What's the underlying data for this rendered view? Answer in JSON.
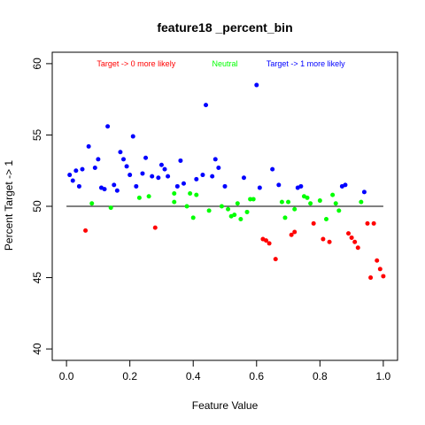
{
  "chart_data": {
    "type": "scatter",
    "title": "feature18 _percent_bin",
    "xlabel": "Feature Value",
    "ylabel": "Percent Target -> 1",
    "xlim": [
      -0.045,
      1.045
    ],
    "ylim": [
      39.2,
      60.8
    ],
    "xticks": [
      "0.0",
      "0.2",
      "0.4",
      "0.6",
      "0.8",
      "1.0"
    ],
    "xtick_values": [
      0,
      0.2,
      0.4,
      0.6,
      0.8,
      1.0
    ],
    "yticks": [
      "40",
      "45",
      "50",
      "55",
      "60"
    ],
    "ytick_values": [
      40,
      45,
      50,
      55,
      60
    ],
    "reference_line": 50,
    "grid": false,
    "legend_placement": "top",
    "colors": {
      "above": "#0000ff",
      "neutral": "#00ff00",
      "below": "#ff0000",
      "line": "#000000"
    },
    "annotations": [
      {
        "text": "Target -> 0 more likely",
        "color": "#ff0000",
        "x": 0.22,
        "y": 60
      },
      {
        "text": "Neutral",
        "color": "#00ff00",
        "x": 0.5,
        "y": 60
      },
      {
        "text": "Target -> 1 more likely",
        "color": "#0000ff",
        "x": 0.755,
        "y": 60
      }
    ],
    "series": [
      {
        "color_key": "above",
        "points": [
          [
            0.01,
            52.2
          ],
          [
            0.02,
            51.8
          ],
          [
            0.03,
            52.5
          ],
          [
            0.04,
            51.4
          ],
          [
            0.05,
            52.6
          ],
          [
            0.07,
            54.2
          ],
          [
            0.09,
            52.7
          ],
          [
            0.1,
            53.3
          ],
          [
            0.11,
            51.3
          ],
          [
            0.12,
            51.2
          ],
          [
            0.13,
            55.6
          ],
          [
            0.15,
            51.5
          ],
          [
            0.16,
            51.1
          ],
          [
            0.17,
            53.8
          ],
          [
            0.18,
            53.3
          ],
          [
            0.19,
            52.8
          ],
          [
            0.2,
            52.2
          ],
          [
            0.21,
            54.9
          ],
          [
            0.22,
            51.4
          ],
          [
            0.24,
            52.3
          ],
          [
            0.25,
            53.4
          ],
          [
            0.27,
            52.1
          ],
          [
            0.29,
            52.0
          ],
          [
            0.3,
            52.9
          ],
          [
            0.31,
            52.6
          ],
          [
            0.32,
            52.1
          ],
          [
            0.35,
            51.4
          ],
          [
            0.36,
            53.2
          ],
          [
            0.37,
            51.6
          ],
          [
            0.41,
            51.9
          ],
          [
            0.43,
            52.2
          ],
          [
            0.44,
            57.1
          ],
          [
            0.46,
            52.1
          ],
          [
            0.47,
            53.3
          ],
          [
            0.48,
            52.7
          ],
          [
            0.5,
            51.4
          ],
          [
            0.56,
            52.0
          ],
          [
            0.6,
            58.5
          ],
          [
            0.61,
            51.3
          ],
          [
            0.65,
            52.6
          ],
          [
            0.67,
            51.5
          ],
          [
            0.73,
            51.3
          ],
          [
            0.74,
            51.4
          ],
          [
            0.87,
            51.4
          ],
          [
            0.88,
            51.5
          ],
          [
            0.94,
            51.0
          ]
        ]
      },
      {
        "color_key": "neutral",
        "points": [
          [
            0.08,
            50.2
          ],
          [
            0.14,
            49.9
          ],
          [
            0.23,
            50.6
          ],
          [
            0.26,
            50.7
          ],
          [
            0.34,
            50.9
          ],
          [
            0.34,
            50.3
          ],
          [
            0.38,
            50.0
          ],
          [
            0.39,
            50.9
          ],
          [
            0.4,
            49.2
          ],
          [
            0.41,
            50.8
          ],
          [
            0.45,
            49.7
          ],
          [
            0.49,
            50.0
          ],
          [
            0.51,
            49.8
          ],
          [
            0.52,
            49.3
          ],
          [
            0.53,
            49.4
          ],
          [
            0.54,
            50.2
          ],
          [
            0.55,
            49.1
          ],
          [
            0.57,
            49.6
          ],
          [
            0.58,
            50.5
          ],
          [
            0.59,
            50.5
          ],
          [
            0.68,
            50.3
          ],
          [
            0.69,
            49.2
          ],
          [
            0.7,
            50.3
          ],
          [
            0.72,
            49.8
          ],
          [
            0.75,
            50.7
          ],
          [
            0.76,
            50.6
          ],
          [
            0.77,
            50.2
          ],
          [
            0.8,
            50.4
          ],
          [
            0.82,
            49.1
          ],
          [
            0.84,
            50.8
          ],
          [
            0.85,
            50.2
          ],
          [
            0.86,
            49.7
          ],
          [
            0.93,
            50.3
          ]
        ]
      },
      {
        "color_key": "below",
        "points": [
          [
            0.06,
            48.3
          ],
          [
            0.28,
            48.5
          ],
          [
            0.62,
            47.7
          ],
          [
            0.63,
            47.6
          ],
          [
            0.64,
            47.4
          ],
          [
            0.66,
            46.3
          ],
          [
            0.71,
            48.0
          ],
          [
            0.72,
            48.2
          ],
          [
            0.78,
            48.8
          ],
          [
            0.81,
            47.7
          ],
          [
            0.83,
            47.5
          ],
          [
            0.89,
            48.1
          ],
          [
            0.9,
            47.8
          ],
          [
            0.91,
            47.5
          ],
          [
            0.92,
            47.1
          ],
          [
            0.95,
            48.8
          ],
          [
            0.96,
            45.0
          ],
          [
            0.97,
            48.8
          ],
          [
            0.98,
            46.2
          ],
          [
            0.99,
            45.6
          ],
          [
            1.0,
            45.1
          ]
        ]
      }
    ]
  }
}
